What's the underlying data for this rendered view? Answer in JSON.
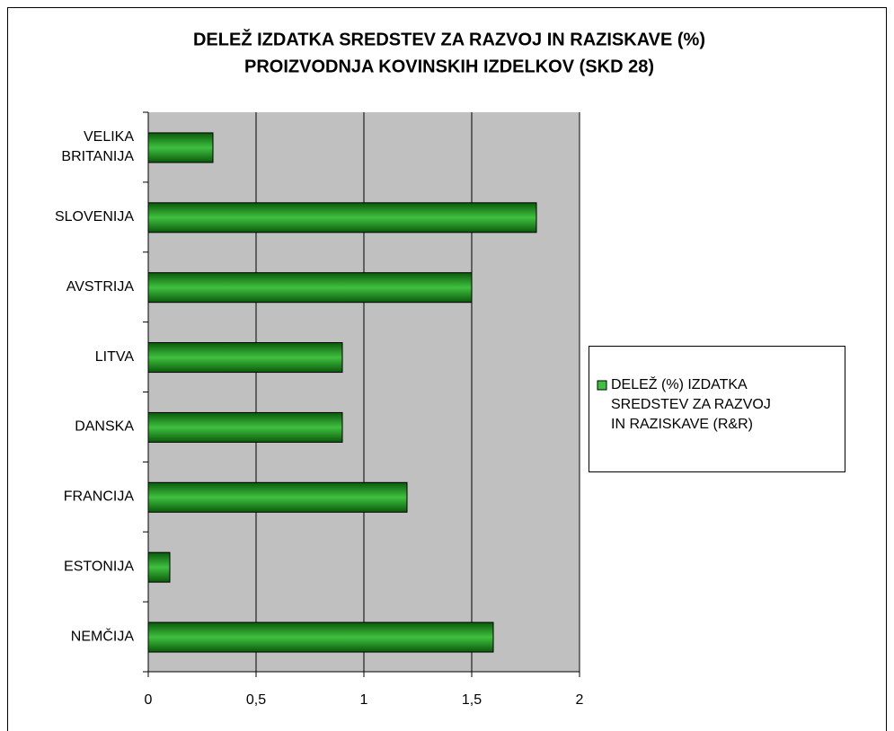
{
  "chart_data": {
    "type": "barh",
    "title": "DELEŽ IZDATKA SREDSTEV ZA RAZVOJ IN RAZISKAVE (%)",
    "subtitle": "PROIZVODNJA KOVINSKIH IZDELKOV (SKD 28)",
    "categories": [
      "VELIKA BRITANIJA",
      "SLOVENIJA",
      "AVSTRIJA",
      "LITVA",
      "DANSKA",
      "FRANCIJA",
      "ESTONIJA",
      "NEMČIJA"
    ],
    "series": [
      {
        "name": "DELEŽ (%) IZDATKA SREDSTEV ZA RAZVOJ IN RAZISKAVE (R&R)",
        "color": "#40c040",
        "values": [
          0.3,
          1.8,
          1.5,
          0.9,
          0.9,
          1.2,
          0.1,
          1.6
        ]
      }
    ],
    "xlim": [
      0,
      2
    ],
    "xticks": [
      0,
      {
        "value": 0.5,
        "label": "0,5"
      },
      1,
      {
        "value": 1.5,
        "label": "1,5"
      },
      2
    ],
    "grid": true,
    "legend": "right"
  }
}
